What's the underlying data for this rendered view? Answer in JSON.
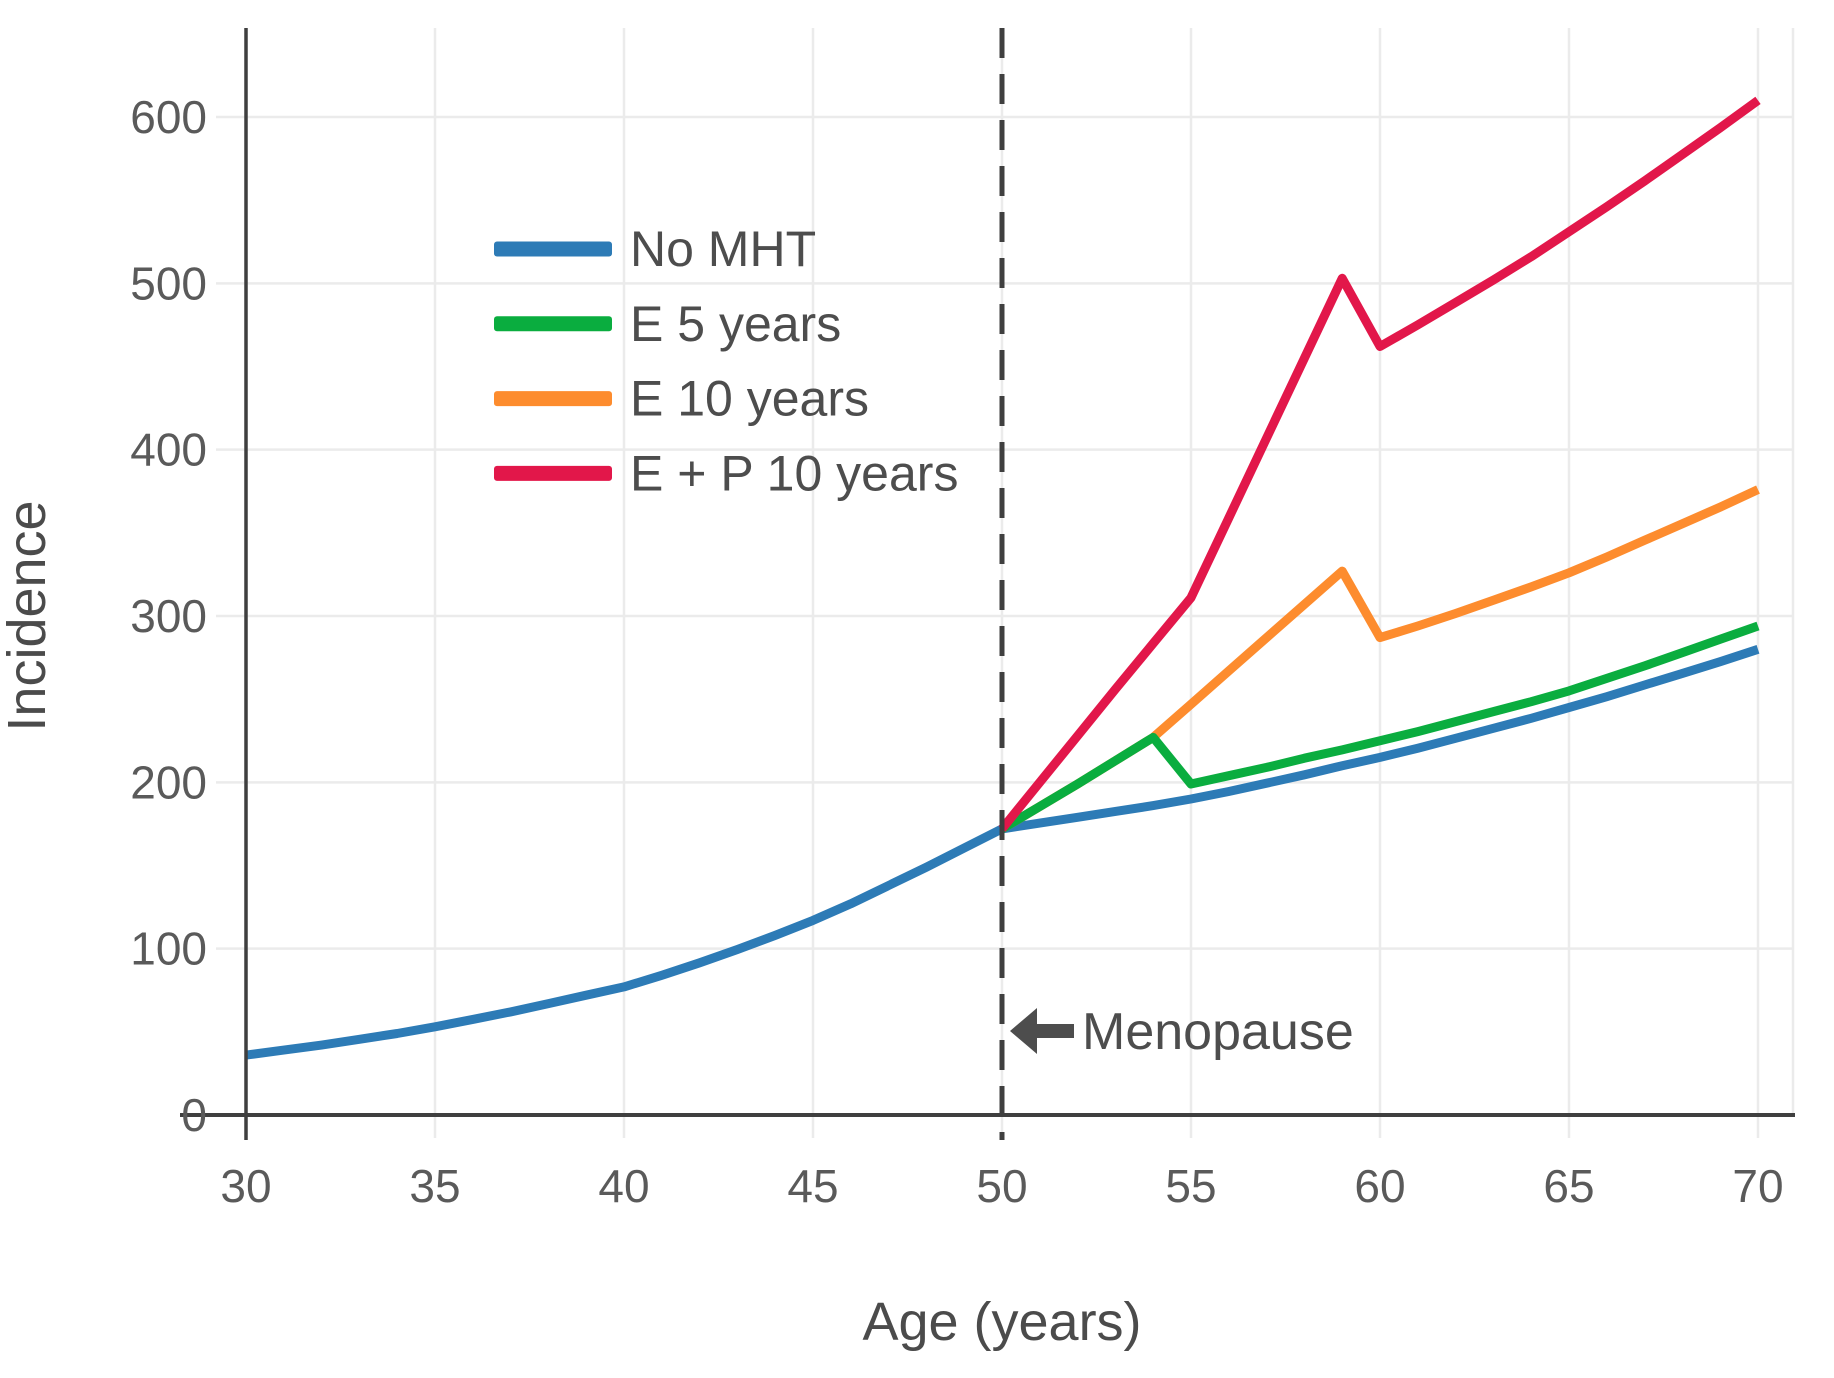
{
  "figure": {
    "background": "#ffffff",
    "grid_color": "#ebebeb",
    "spine_color": "#3f3f3f",
    "tick_label_color": "#5a5a5a",
    "title_color": "#4b4b4b",
    "dashed_line_color": "#3f3f3f",
    "annotation": {
      "label": "Menopause",
      "icon": "left-arrow",
      "at_x": 50
    }
  },
  "chart_data": {
    "type": "line",
    "title": "",
    "xlabel": "Age (years)",
    "ylabel": "Incidence",
    "xlim": [
      30,
      71
    ],
    "ylim": [
      0,
      650
    ],
    "x_ticks": [
      30,
      35,
      40,
      45,
      50,
      55,
      60,
      65,
      70
    ],
    "y_ticks": [
      0,
      100,
      200,
      300,
      400,
      500,
      600
    ],
    "grid": true,
    "legend_position": "upper-left-inside",
    "annotations": [
      {
        "type": "vline-dashed",
        "x": 50,
        "text": "Menopause"
      }
    ],
    "series": [
      {
        "name": "No MHT",
        "color": "#2d7bb6",
        "zorder": 1,
        "x": [
          30,
          31,
          32,
          33,
          34,
          35,
          36,
          37,
          38,
          39,
          40,
          41,
          42,
          43,
          44,
          45,
          46,
          47,
          48,
          49,
          50,
          51,
          52,
          53,
          54,
          55,
          56,
          57,
          58,
          59,
          60,
          61,
          62,
          63,
          64,
          65,
          66,
          67,
          68,
          69,
          70
        ],
        "y": [
          36,
          39,
          42,
          45.5,
          49,
          53,
          57.5,
          62,
          67,
          72,
          77,
          84,
          91.5,
          99.5,
          108,
          117,
          127,
          138,
          149,
          160.5,
          172,
          175.5,
          179,
          182.5,
          186,
          190,
          194.5,
          199.5,
          204.5,
          210,
          215,
          220.5,
          226.5,
          232.5,
          238.5,
          245,
          251.5,
          258.5,
          265.5,
          272.5,
          280
        ]
      },
      {
        "name": "E 5 years",
        "color": "#0aad3f",
        "zorder": 3,
        "x": [
          50,
          51,
          52,
          53,
          54,
          55,
          56,
          57,
          58,
          59,
          60,
          61,
          62,
          63,
          64,
          65,
          66,
          67,
          68,
          69,
          70
        ],
        "y": [
          172,
          185.5,
          199,
          213,
          227,
          199,
          204,
          209,
          214.5,
          219.5,
          225,
          230.5,
          236.5,
          242.5,
          248.5,
          255,
          262.5,
          270,
          278,
          286,
          294
        ]
      },
      {
        "name": "E 10 years",
        "color": "#fd8c2e",
        "zorder": 2,
        "x": [
          50,
          51,
          52,
          53,
          54,
          55,
          56,
          57,
          58,
          59,
          60,
          61,
          62,
          63,
          64,
          65,
          66,
          67,
          68,
          69,
          70
        ],
        "y": [
          172,
          185.5,
          199,
          213,
          227,
          247,
          267,
          287,
          307,
          327,
          287,
          294,
          301.5,
          309.5,
          317.5,
          326,
          335.5,
          345.5,
          355.5,
          365.5,
          376
        ]
      },
      {
        "name": "E + P 10 years",
        "color": "#e2174a",
        "zorder": 4,
        "x": [
          50,
          51,
          52,
          53,
          54,
          55,
          56,
          57,
          58,
          59,
          60,
          61,
          62,
          63,
          64,
          65,
          66,
          67,
          68,
          69,
          70
        ],
        "y": [
          172,
          200,
          228,
          256,
          283.5,
          311,
          359,
          407,
          455,
          503,
          462,
          475,
          488.5,
          502,
          516,
          531,
          546,
          561.5,
          577.5,
          593.5,
          610
        ]
      }
    ]
  }
}
